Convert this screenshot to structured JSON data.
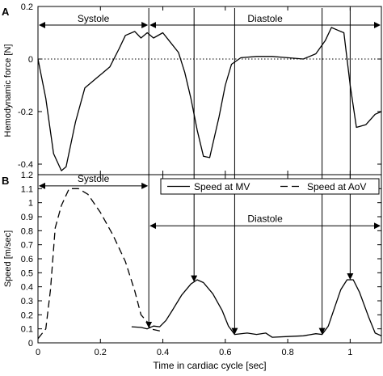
{
  "chart_data": [
    {
      "type": "line",
      "panel_letter": "A",
      "ylabel": "Hemodynamic force [N]",
      "xlim": [
        0,
        1.1
      ],
      "ylim": [
        -0.44,
        0.2
      ],
      "xticks": [
        0,
        0.2,
        0.4,
        0.6,
        0.8,
        1
      ],
      "yticks": [
        0.2,
        0,
        -0.2,
        -0.4
      ],
      "ytick_labels": [
        "0.2",
        "0",
        "-0.2",
        "-0.4"
      ],
      "zero_line": "dotted",
      "series": [
        {
          "style": "solid",
          "x": [
            0,
            0.025,
            0.05,
            0.075,
            0.09,
            0.12,
            0.15,
            0.19,
            0.23,
            0.26,
            0.28,
            0.31,
            0.33,
            0.35,
            0.37,
            0.4,
            0.42,
            0.45,
            0.47,
            0.49,
            0.51,
            0.53,
            0.55,
            0.58,
            0.6,
            0.62,
            0.65,
            0.7,
            0.75,
            0.8,
            0.85,
            0.89,
            0.92,
            0.94,
            0.96,
            0.98,
            1.0,
            1.02,
            1.05,
            1.08,
            1.1
          ],
          "y": [
            0,
            -0.15,
            -0.36,
            -0.425,
            -0.41,
            -0.24,
            -0.11,
            -0.07,
            -0.03,
            0.04,
            0.09,
            0.105,
            0.08,
            0.1,
            0.08,
            0.1,
            0.07,
            0.025,
            -0.05,
            -0.15,
            -0.27,
            -0.37,
            -0.375,
            -0.22,
            -0.1,
            -0.02,
            0.005,
            0.01,
            0.01,
            0.005,
            0.0,
            0.02,
            0.07,
            0.12,
            0.11,
            0.1,
            -0.1,
            -0.26,
            -0.25,
            -0.21,
            -0.2
          ]
        }
      ],
      "annotations": [
        {
          "text": "Systole",
          "from": 0,
          "to": 0.355
        },
        {
          "text": "Diastole",
          "from": 0.355,
          "to": 1.1
        }
      ]
    },
    {
      "type": "line",
      "panel_letter": "B",
      "xlabel": "Time in cardiac cycle [sec]",
      "ylabel": "Speed [m/sec]",
      "xlim": [
        0,
        1.1
      ],
      "ylim": [
        0,
        1.2
      ],
      "xticks": [
        0,
        0.2,
        0.4,
        0.6,
        0.8,
        1
      ],
      "xtick_labels": [
        "0",
        "0.2",
        "0.4",
        "0.6",
        "0.8",
        "1"
      ],
      "yticks": [
        0,
        0.1,
        0.2,
        0.3,
        0.4,
        0.5,
        0.6,
        0.7,
        0.8,
        0.9,
        1,
        1.1,
        1.2
      ],
      "ytick_labels": [
        "0",
        "0.1",
        "0.2",
        "0.3",
        "0.4",
        "0.5",
        "0.6",
        "0.7",
        "0.8",
        "0.9",
        "1",
        "1.1",
        "1.2"
      ],
      "legend_position": "top-right",
      "series": [
        {
          "name": "Speed at MV",
          "style": "solid",
          "x": [
            0.3,
            0.33,
            0.35,
            0.37,
            0.39,
            0.41,
            0.43,
            0.46,
            0.49,
            0.51,
            0.53,
            0.56,
            0.59,
            0.61,
            0.63,
            0.67,
            0.7,
            0.73,
            0.75,
            0.8,
            0.85,
            0.89,
            0.91,
            0.93,
            0.95,
            0.97,
            0.99,
            1.01,
            1.03,
            1.06,
            1.08,
            1.1
          ],
          "y": [
            0.115,
            0.11,
            0.1,
            0.12,
            0.115,
            0.16,
            0.23,
            0.34,
            0.42,
            0.45,
            0.43,
            0.35,
            0.23,
            0.12,
            0.06,
            0.07,
            0.06,
            0.07,
            0.04,
            0.045,
            0.05,
            0.065,
            0.06,
            0.12,
            0.25,
            0.38,
            0.45,
            0.45,
            0.36,
            0.18,
            0.07,
            0.05
          ]
        },
        {
          "name": "Speed at AoV",
          "style": "dashed",
          "x": [
            0.0,
            0.025,
            0.04,
            0.055,
            0.075,
            0.1,
            0.13,
            0.16,
            0.2,
            0.24,
            0.28,
            0.31,
            0.33,
            0.35,
            0.36,
            0.38,
            0.4
          ],
          "y": [
            0.03,
            0.1,
            0.38,
            0.82,
            0.98,
            1.1,
            1.1,
            1.06,
            0.93,
            0.77,
            0.58,
            0.37,
            0.2,
            0.15,
            0.1,
            0.09,
            0.08
          ]
        }
      ],
      "annotations": [
        {
          "text": "Systole",
          "from": 0,
          "to": 0.355
        },
        {
          "text": "Diastole",
          "from": 0.355,
          "to": 1.1
        }
      ],
      "event_lines_x": [
        0.355,
        0.5,
        0.63,
        0.91,
        1.0
      ]
    }
  ]
}
